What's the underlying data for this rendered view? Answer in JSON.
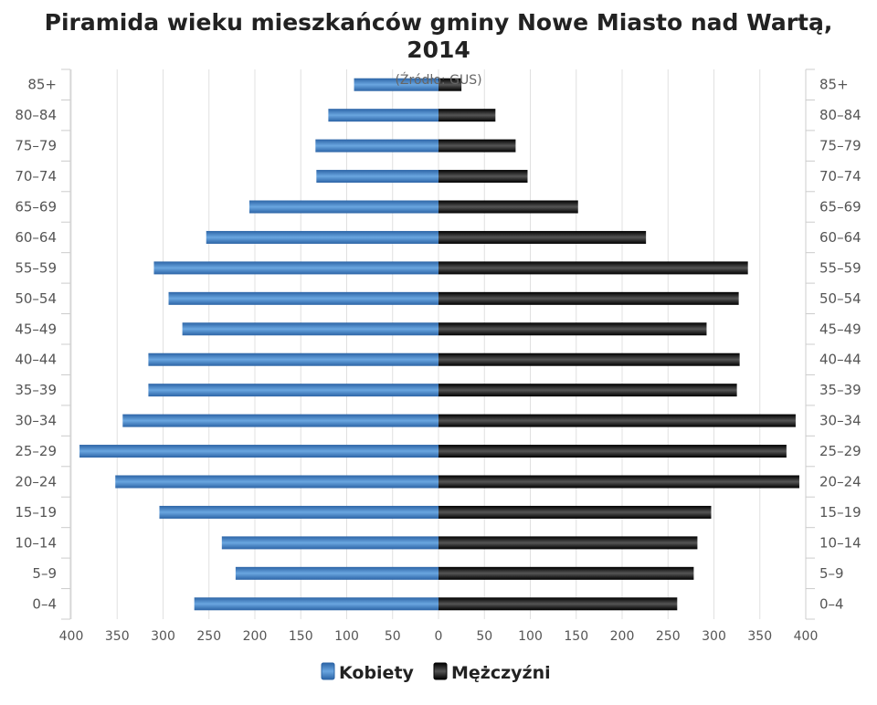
{
  "chart_data": {
    "type": "bar",
    "orientation": "horizontal-pyramid",
    "title": "Piramida wieku mieszkańców gminy Nowe Miasto nad Wartą, 2014",
    "title_line1": "Piramida wieku mieszkańców gminy Nowe Miasto nad Wartą,",
    "title_line2": "2014",
    "subtitle": "(Źródło: GUS)",
    "categories": [
      "85+",
      "80-84",
      "75-79",
      "70-74",
      "65-69",
      "60-64",
      "55-59",
      "50-54",
      "45-49",
      "40-44",
      "35-39",
      "30-34",
      "25-29",
      "20-24",
      "15-19",
      "10-14",
      "5-9",
      "0-4"
    ],
    "series": [
      {
        "name": "Kobiety",
        "side": "left",
        "color": "#3a7bc0",
        "values": [
          92,
          120,
          134,
          133,
          206,
          253,
          310,
          294,
          279,
          316,
          316,
          344,
          391,
          352,
          304,
          236,
          221,
          266
        ]
      },
      {
        "name": "Mężczyźni",
        "side": "right",
        "color": "#1a1a1a",
        "values": [
          25,
          62,
          84,
          97,
          152,
          226,
          337,
          327,
          292,
          328,
          325,
          389,
          379,
          393,
          297,
          282,
          278,
          260
        ]
      }
    ],
    "xlim": [
      -400,
      400
    ],
    "xticks": [
      400,
      350,
      300,
      250,
      200,
      150,
      100,
      50,
      0,
      50,
      100,
      150,
      200,
      250,
      300,
      350,
      400
    ],
    "grid": true,
    "legend_position": "bottom-center"
  }
}
